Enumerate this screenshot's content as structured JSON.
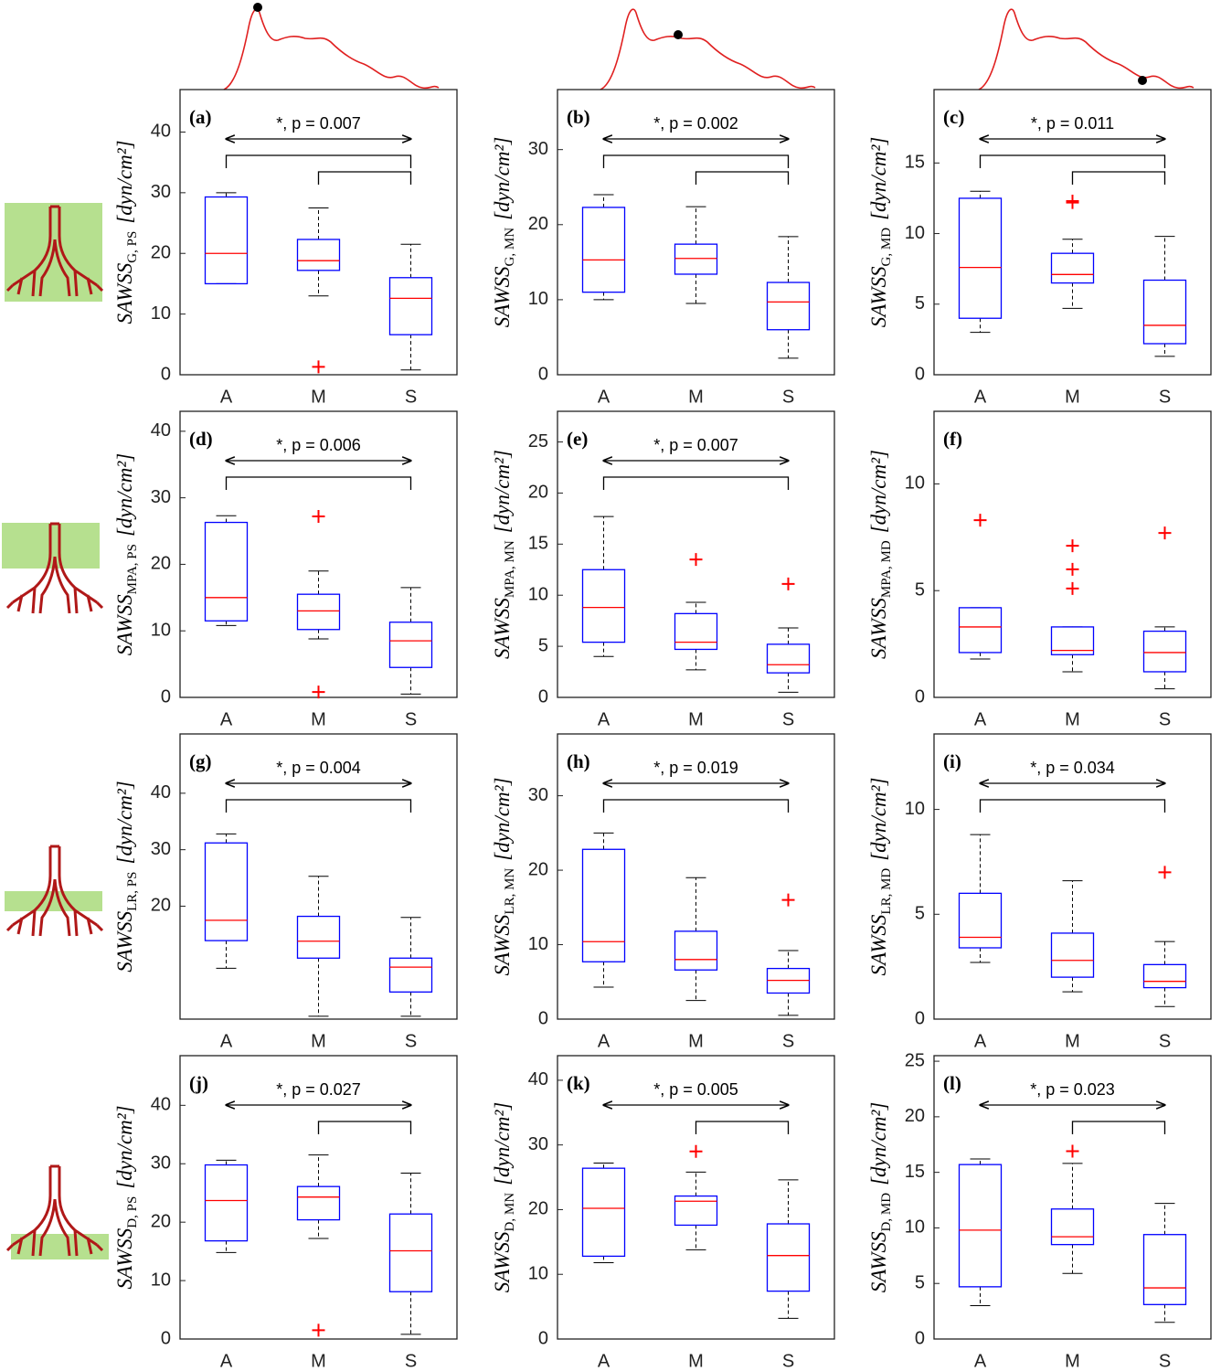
{
  "chart_data": [
    {
      "type": "box",
      "label": "(a)",
      "ylabel": "SAWSS",
      "ylabel_sub": "G, PS",
      "ylabel_unit": "[dyn/cm²]",
      "categories": [
        "A",
        "M",
        "S"
      ],
      "ylim": [
        0,
        47
      ],
      "yticks": [
        0,
        10,
        20,
        30,
        40
      ],
      "boxes": [
        {
          "whislo": 15,
          "q1": 15,
          "med": 20,
          "q3": 29.3,
          "whishi": 30,
          "fliers": []
        },
        {
          "whislo": 13,
          "q1": 17.2,
          "med": 18.8,
          "q3": 22.3,
          "whishi": 27.5,
          "fliers": [
            1.3
          ]
        },
        {
          "whislo": 0.8,
          "q1": 6.6,
          "med": 12.6,
          "q3": 16,
          "whishi": 21.5,
          "fliers": []
        }
      ],
      "annotation": "*, p = 0.007",
      "pairs": [
        [
          0,
          2
        ],
        [
          1,
          2
        ]
      ],
      "box_color": "#0000ff",
      "median_color": "#ff0000",
      "flier_color": "#ff0000"
    },
    {
      "type": "box",
      "label": "(b)",
      "ylabel": "SAWSS",
      "ylabel_sub": "G, MN",
      "ylabel_unit": "[dyn/cm²]",
      "categories": [
        "A",
        "M",
        "S"
      ],
      "ylim": [
        0,
        38
      ],
      "yticks": [
        0,
        10,
        20,
        30
      ],
      "boxes": [
        {
          "whislo": 10,
          "q1": 11,
          "med": 15.3,
          "q3": 22.3,
          "whishi": 24,
          "fliers": []
        },
        {
          "whislo": 9.5,
          "q1": 13.4,
          "med": 15.5,
          "q3": 17.4,
          "whishi": 22.4,
          "fliers": []
        },
        {
          "whislo": 2.2,
          "q1": 6,
          "med": 9.7,
          "q3": 12.3,
          "whishi": 18.4,
          "fliers": []
        }
      ],
      "annotation": "*, p = 0.002",
      "pairs": [
        [
          0,
          2
        ],
        [
          1,
          2
        ]
      ],
      "box_color": "#0000ff",
      "median_color": "#ff0000",
      "flier_color": "#ff0000"
    },
    {
      "type": "box",
      "label": "(c)",
      "ylabel": "SAWSS",
      "ylabel_sub": "G, MD",
      "ylabel_unit": "[dyn/cm²]",
      "categories": [
        "A",
        "M",
        "S"
      ],
      "ylim": [
        0,
        20.2
      ],
      "yticks": [
        0,
        5,
        10,
        15
      ],
      "boxes": [
        {
          "whislo": 3,
          "q1": 4,
          "med": 7.6,
          "q3": 12.5,
          "whishi": 13,
          "fliers": []
        },
        {
          "whislo": 4.7,
          "q1": 6.5,
          "med": 7.1,
          "q3": 8.6,
          "whishi": 9.6,
          "fliers": [
            12.2,
            12.3
          ]
        },
        {
          "whislo": 1.3,
          "q1": 2.2,
          "med": 3.5,
          "q3": 6.7,
          "whishi": 9.8,
          "fliers": []
        }
      ],
      "annotation": "*, p = 0.011",
      "pairs": [
        [
          0,
          2
        ],
        [
          1,
          2
        ]
      ],
      "box_color": "#0000ff",
      "median_color": "#ff0000",
      "flier_color": "#ff0000"
    },
    {
      "type": "box",
      "label": "(d)",
      "ylabel": "SAWSS",
      "ylabel_sub": "MPA, PS",
      "ylabel_unit": "[dyn/cm²]",
      "categories": [
        "A",
        "M",
        "S"
      ],
      "ylim": [
        0,
        43
      ],
      "yticks": [
        0,
        10,
        20,
        30,
        40
      ],
      "boxes": [
        {
          "whislo": 10.8,
          "q1": 11.5,
          "med": 15,
          "q3": 26.3,
          "whishi": 27.3,
          "fliers": []
        },
        {
          "whislo": 8.8,
          "q1": 10.2,
          "med": 13,
          "q3": 15.5,
          "whishi": 19,
          "fliers": [
            27.2,
            0.8
          ]
        },
        {
          "whislo": 0.5,
          "q1": 4.5,
          "med": 8.5,
          "q3": 11.3,
          "whishi": 16.5,
          "fliers": []
        }
      ],
      "annotation": "*, p = 0.006",
      "pairs": [
        [
          0,
          2
        ]
      ],
      "box_color": "#0000ff",
      "median_color": "#ff0000",
      "flier_color": "#ff0000"
    },
    {
      "type": "box",
      "label": "(e)",
      "ylabel": "SAWSS",
      "ylabel_sub": "MPA, MN",
      "ylabel_unit": "[dyn/cm²]",
      "categories": [
        "A",
        "M",
        "S"
      ],
      "ylim": [
        0,
        28
      ],
      "yticks": [
        0,
        5,
        10,
        15,
        20,
        25
      ],
      "boxes": [
        {
          "whislo": 4,
          "q1": 5.4,
          "med": 8.8,
          "q3": 12.5,
          "whishi": 17.7,
          "fliers": []
        },
        {
          "whislo": 2.7,
          "q1": 4.7,
          "med": 5.4,
          "q3": 8.2,
          "whishi": 9.3,
          "fliers": [
            13.5
          ]
        },
        {
          "whislo": 0.5,
          "q1": 2.4,
          "med": 3.2,
          "q3": 5.2,
          "whishi": 6.8,
          "fliers": [
            11.1
          ]
        }
      ],
      "annotation": "*, p = 0.007",
      "pairs": [
        [
          0,
          2
        ]
      ],
      "box_color": "#0000ff",
      "median_color": "#ff0000",
      "flier_color": "#ff0000"
    },
    {
      "type": "box",
      "label": "(f)",
      "ylabel": "SAWSS",
      "ylabel_sub": "MPA, MD",
      "ylabel_unit": "[dyn/cm²]",
      "categories": [
        "A",
        "M",
        "S"
      ],
      "ylim": [
        0,
        13.4
      ],
      "yticks": [
        0,
        5,
        10
      ],
      "boxes": [
        {
          "whislo": 1.8,
          "q1": 2.1,
          "med": 3.3,
          "q3": 4.2,
          "whishi": 4.2,
          "fliers": [
            8.3
          ]
        },
        {
          "whislo": 1.2,
          "q1": 2,
          "med": 2.2,
          "q3": 3.3,
          "whishi": 3.3,
          "fliers": [
            7.1,
            6,
            5.1
          ]
        },
        {
          "whislo": 0.4,
          "q1": 1.2,
          "med": 2.1,
          "q3": 3.1,
          "whishi": 3.3,
          "fliers": [
            7.7
          ]
        }
      ],
      "box_color": "#0000ff",
      "median_color": "#ff0000",
      "flier_color": "#ff0000"
    },
    {
      "type": "box",
      "label": "(g)",
      "ylabel": "SAWSS",
      "ylabel_sub": "LR, PS",
      "ylabel_unit": "[dyn/cm²]",
      "categories": [
        "A",
        "M",
        "S"
      ],
      "ylim": [
        0,
        50.5
      ],
      "yticks": [
        20,
        30,
        40
      ],
      "boxes": [
        {
          "whislo": 9,
          "q1": 13.9,
          "med": 17.5,
          "q3": 31.2,
          "whishi": 32.8,
          "fliers": []
        },
        {
          "whislo": 0.5,
          "q1": 10.8,
          "med": 13.8,
          "q3": 18.2,
          "whishi": 25.3,
          "fliers": []
        },
        {
          "whislo": 0.5,
          "q1": 4.8,
          "med": 9.2,
          "q3": 10.8,
          "whishi": 18,
          "fliers": []
        }
      ],
      "annotation": "*, p = 0.004",
      "pairs": [
        [
          0,
          2
        ]
      ],
      "box_color": "#0000ff",
      "median_color": "#ff0000",
      "flier_color": "#ff0000"
    },
    {
      "type": "box",
      "label": "(h)",
      "ylabel": "SAWSS",
      "ylabel_sub": "LR, MN",
      "ylabel_unit": "[dyn/cm²]",
      "categories": [
        "A",
        "M",
        "S"
      ],
      "ylim": [
        0,
        38.3
      ],
      "yticks": [
        0,
        10,
        20,
        30
      ],
      "boxes": [
        {
          "whislo": 4.3,
          "q1": 7.7,
          "med": 10.4,
          "q3": 22.8,
          "whishi": 25,
          "fliers": []
        },
        {
          "whislo": 2.5,
          "q1": 6.6,
          "med": 8,
          "q3": 11.8,
          "whishi": 19,
          "fliers": []
        },
        {
          "whislo": 0.5,
          "q1": 3.5,
          "med": 5.2,
          "q3": 6.8,
          "whishi": 9.2,
          "fliers": [
            16
          ]
        }
      ],
      "annotation": "*, p = 0.019",
      "pairs": [
        [
          0,
          2
        ]
      ],
      "box_color": "#0000ff",
      "median_color": "#ff0000",
      "flier_color": "#ff0000"
    },
    {
      "type": "box",
      "label": "(i)",
      "ylabel": "SAWSS",
      "ylabel_sub": "LR, MD",
      "ylabel_unit": "[dyn/cm²]",
      "categories": [
        "A",
        "M",
        "S"
      ],
      "ylim": [
        0,
        13.6
      ],
      "yticks": [
        0,
        5,
        10
      ],
      "boxes": [
        {
          "whislo": 2.7,
          "q1": 3.4,
          "med": 3.9,
          "q3": 6,
          "whishi": 8.8,
          "fliers": []
        },
        {
          "whislo": 1.3,
          "q1": 2,
          "med": 2.8,
          "q3": 4.1,
          "whishi": 6.6,
          "fliers": []
        },
        {
          "whislo": 0.6,
          "q1": 1.5,
          "med": 1.8,
          "q3": 2.6,
          "whishi": 3.7,
          "fliers": [
            7
          ]
        }
      ],
      "annotation": "*, p = 0.034",
      "pairs": [
        [
          0,
          2
        ]
      ],
      "box_color": "#0000ff",
      "median_color": "#ff0000",
      "flier_color": "#ff0000"
    },
    {
      "type": "box",
      "label": "(j)",
      "ylabel": "SAWSS",
      "ylabel_sub": "D, PS",
      "ylabel_unit": "[dyn/cm²]",
      "categories": [
        "A",
        "M",
        "S"
      ],
      "ylim": [
        0,
        48.5
      ],
      "yticks": [
        0,
        10,
        20,
        30,
        40
      ],
      "boxes": [
        {
          "whislo": 14.8,
          "q1": 16.8,
          "med": 23.7,
          "q3": 29.8,
          "whishi": 30.6,
          "fliers": []
        },
        {
          "whislo": 17.2,
          "q1": 20.4,
          "med": 24.3,
          "q3": 26.1,
          "whishi": 31.5,
          "fliers": [
            1.5
          ]
        },
        {
          "whislo": 0.8,
          "q1": 8.1,
          "med": 15.1,
          "q3": 21.4,
          "whishi": 28.4,
          "fliers": []
        }
      ],
      "annotation": "*, p = 0.027",
      "pairs": [
        [
          1,
          2
        ]
      ],
      "box_color": "#0000ff",
      "median_color": "#ff0000",
      "flier_color": "#ff0000"
    },
    {
      "type": "box",
      "label": "(k)",
      "ylabel": "SAWSS",
      "ylabel_sub": "D, MN",
      "ylabel_unit": "[dyn/cm²]",
      "categories": [
        "A",
        "M",
        "S"
      ],
      "ylim": [
        0,
        43.8
      ],
      "yticks": [
        0,
        10,
        20,
        30,
        40
      ],
      "boxes": [
        {
          "whislo": 11.8,
          "q1": 12.8,
          "med": 20.2,
          "q3": 26.4,
          "whishi": 27.2,
          "fliers": []
        },
        {
          "whislo": 13.8,
          "q1": 17.6,
          "med": 21.3,
          "q3": 22.1,
          "whishi": 25.8,
          "fliers": [
            29
          ]
        },
        {
          "whislo": 3.2,
          "q1": 7.4,
          "med": 12.9,
          "q3": 17.8,
          "whishi": 24.6,
          "fliers": []
        }
      ],
      "annotation": "*, p = 0.005",
      "pairs": [
        [
          1,
          2
        ]
      ],
      "box_color": "#0000ff",
      "median_color": "#ff0000",
      "flier_color": "#ff0000"
    },
    {
      "type": "box",
      "label": "(l)",
      "ylabel": "SAWSS",
      "ylabel_sub": "D, MD",
      "ylabel_unit": "[dyn/cm²]",
      "categories": [
        "A",
        "M",
        "S"
      ],
      "ylim": [
        0,
        25.5
      ],
      "yticks": [
        0,
        5,
        10,
        15,
        20,
        25
      ],
      "boxes": [
        {
          "whislo": 3,
          "q1": 4.7,
          "med": 9.8,
          "q3": 15.7,
          "whishi": 16.2,
          "fliers": []
        },
        {
          "whislo": 5.9,
          "q1": 8.5,
          "med": 9.2,
          "q3": 11.7,
          "whishi": 15.8,
          "fliers": [
            16.9
          ]
        },
        {
          "whislo": 1.5,
          "q1": 3.1,
          "med": 4.6,
          "q3": 9.4,
          "whishi": 12.2,
          "fliers": []
        }
      ],
      "annotation": "*, p = 0.023",
      "pairs": [
        [
          1,
          2
        ]
      ],
      "box_color": "#0000ff",
      "median_color": "#ff0000",
      "flier_color": "#ff0000"
    }
  ]
}
